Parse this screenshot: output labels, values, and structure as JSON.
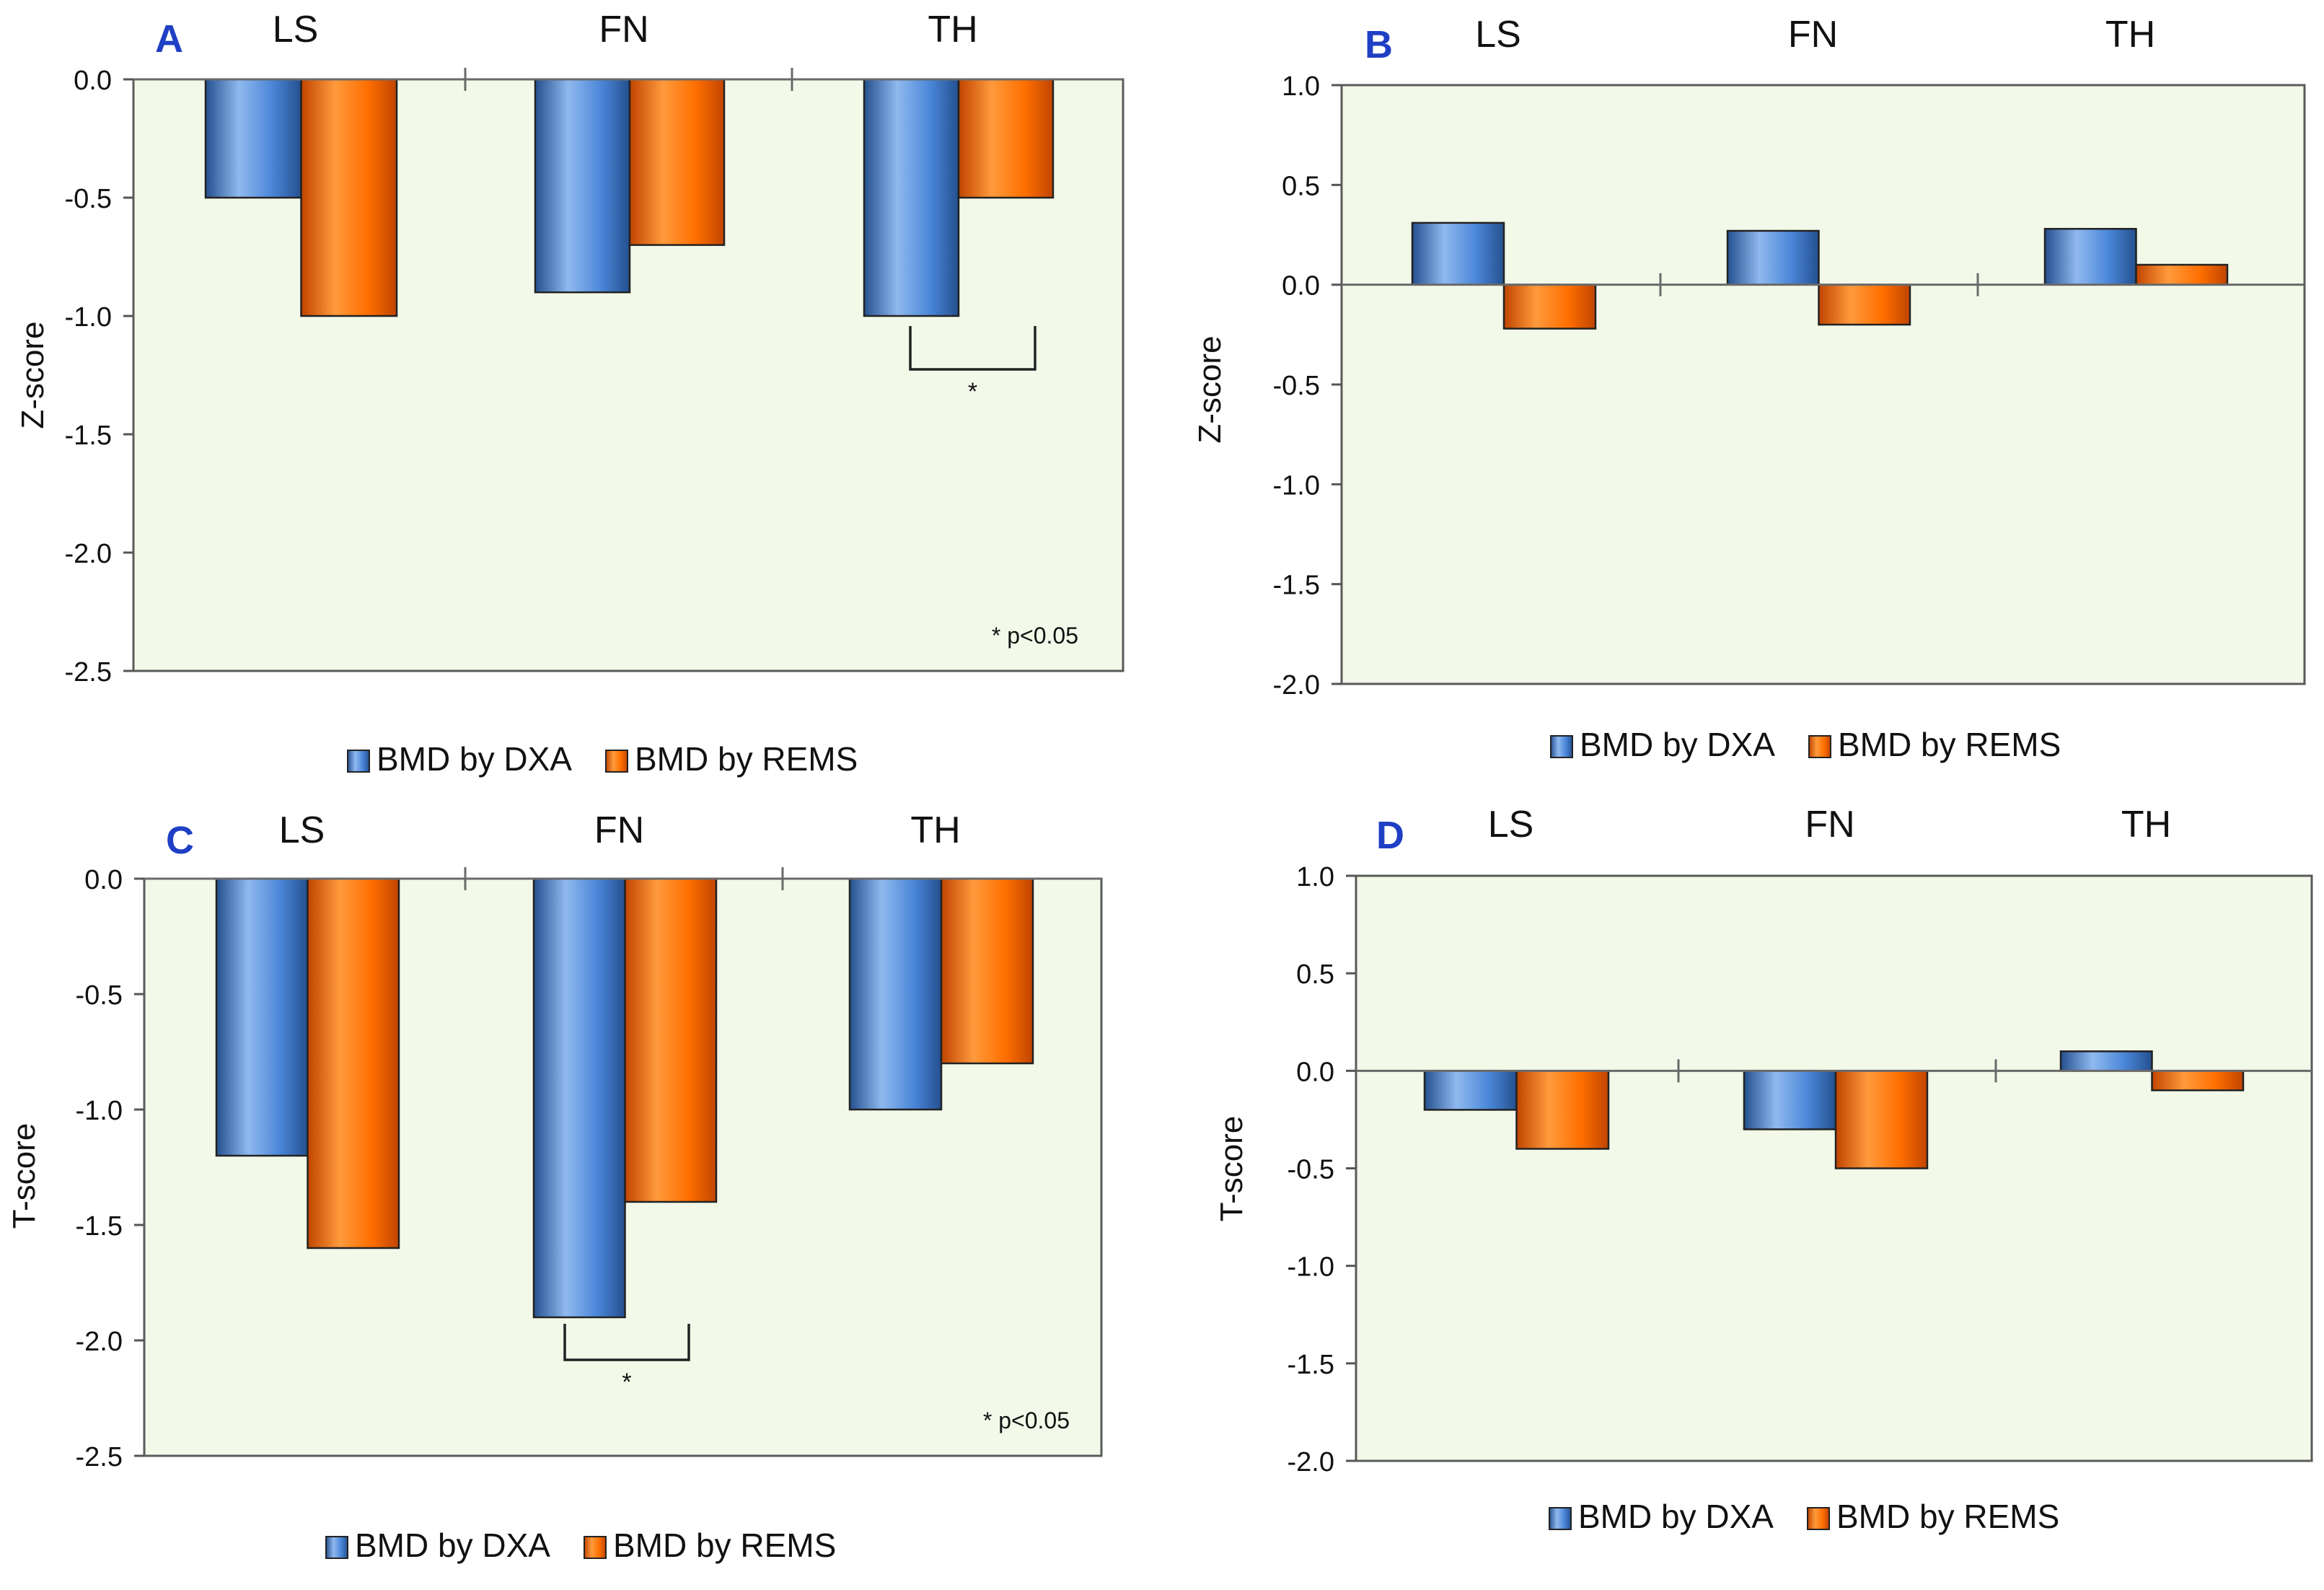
{
  "colors": {
    "dxa": "#4a86d8",
    "dxa_dark": "#24508f",
    "dxa_light": "#8fb9ef",
    "rems": "#ff6f00",
    "rems_dark": "#c04400",
    "rems_light": "#ff9a3c",
    "plot_bg": "#f3f9e9",
    "panel_letter": "#1f3fc4",
    "text": "#111111"
  },
  "legend": {
    "dxa": "BMD by DXA",
    "rems": "BMD by REMS"
  },
  "chart_data": [
    {
      "panel": "A",
      "type": "bar",
      "categories": [
        "LS",
        "FN",
        "TH"
      ],
      "ylabel": "Z-score",
      "ylim": [
        -2.5,
        0.0
      ],
      "yticks": [
        "0.0",
        "-0.5",
        "-1.0",
        "-1.5",
        "-2.0",
        "-2.5"
      ],
      "yticks_values": [
        0.0,
        -0.5,
        -1.0,
        -1.5,
        -2.0,
        -2.5
      ],
      "series": [
        {
          "name": "BMD by DXA",
          "values": [
            -0.5,
            -0.9,
            -1.0
          ]
        },
        {
          "name": "BMD by REMS",
          "values": [
            -1.0,
            -0.7,
            -0.5
          ]
        }
      ],
      "significance": {
        "category": "TH",
        "marker": "*"
      },
      "note": "* p<0.05"
    },
    {
      "panel": "B",
      "type": "bar",
      "categories": [
        "LS",
        "FN",
        "TH"
      ],
      "ylabel": "Z-score",
      "ylim": [
        -2.0,
        1.0
      ],
      "yticks": [
        "1.0",
        "0.5",
        "0.0",
        "-0.5",
        "-1.0",
        "-1.5",
        "-2.0"
      ],
      "yticks_values": [
        1.0,
        0.5,
        0.0,
        -0.5,
        -1.0,
        -1.5,
        -2.0
      ],
      "series": [
        {
          "name": "BMD by DXA",
          "values": [
            0.31,
            0.27,
            0.28
          ]
        },
        {
          "name": "BMD by REMS",
          "values": [
            -0.22,
            -0.2,
            0.1
          ]
        }
      ]
    },
    {
      "panel": "C",
      "type": "bar",
      "categories": [
        "LS",
        "FN",
        "TH"
      ],
      "ylabel": "T-score",
      "ylim": [
        -2.5,
        0.0
      ],
      "yticks": [
        "0.0",
        "-0.5",
        "-1.0",
        "-1.5",
        "-2.0",
        "-2.5"
      ],
      "yticks_values": [
        0.0,
        -0.5,
        -1.0,
        -1.5,
        -2.0,
        -2.5
      ],
      "series": [
        {
          "name": "BMD by DXA",
          "values": [
            -1.2,
            -1.9,
            -1.0
          ]
        },
        {
          "name": "BMD by REMS",
          "values": [
            -1.6,
            -1.4,
            -0.8
          ]
        }
      ],
      "significance": {
        "category": "FN",
        "marker": "*"
      },
      "note": "* p<0.05"
    },
    {
      "panel": "D",
      "type": "bar",
      "categories": [
        "LS",
        "FN",
        "TH"
      ],
      "ylabel": "T-score",
      "ylim": [
        -2.0,
        1.0
      ],
      "yticks": [
        "1.0",
        "0.5",
        "0.0",
        "-0.5",
        "-1.0",
        "-1.5",
        "-2.0"
      ],
      "yticks_values": [
        1.0,
        0.5,
        0.0,
        -0.5,
        -1.0,
        -1.5,
        -2.0
      ],
      "series": [
        {
          "name": "BMD by DXA",
          "values": [
            -0.2,
            -0.3,
            0.1
          ]
        },
        {
          "name": "BMD by REMS",
          "values": [
            -0.4,
            -0.5,
            -0.1
          ]
        }
      ]
    }
  ]
}
